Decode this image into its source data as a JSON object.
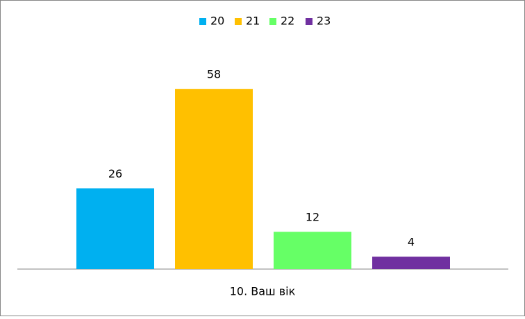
{
  "chart_data": {
    "type": "bar",
    "categories": [
      "10. Ваш вік"
    ],
    "series": [
      {
        "name": "20",
        "color": "#00b0f0",
        "values": [
          26
        ]
      },
      {
        "name": "21",
        "color": "#ffc000",
        "values": [
          58
        ]
      },
      {
        "name": "22",
        "color": "#66ff66",
        "values": [
          12
        ]
      },
      {
        "name": "23",
        "color": "#7030a0",
        "values": [
          4
        ]
      }
    ],
    "legend": "top"
  }
}
